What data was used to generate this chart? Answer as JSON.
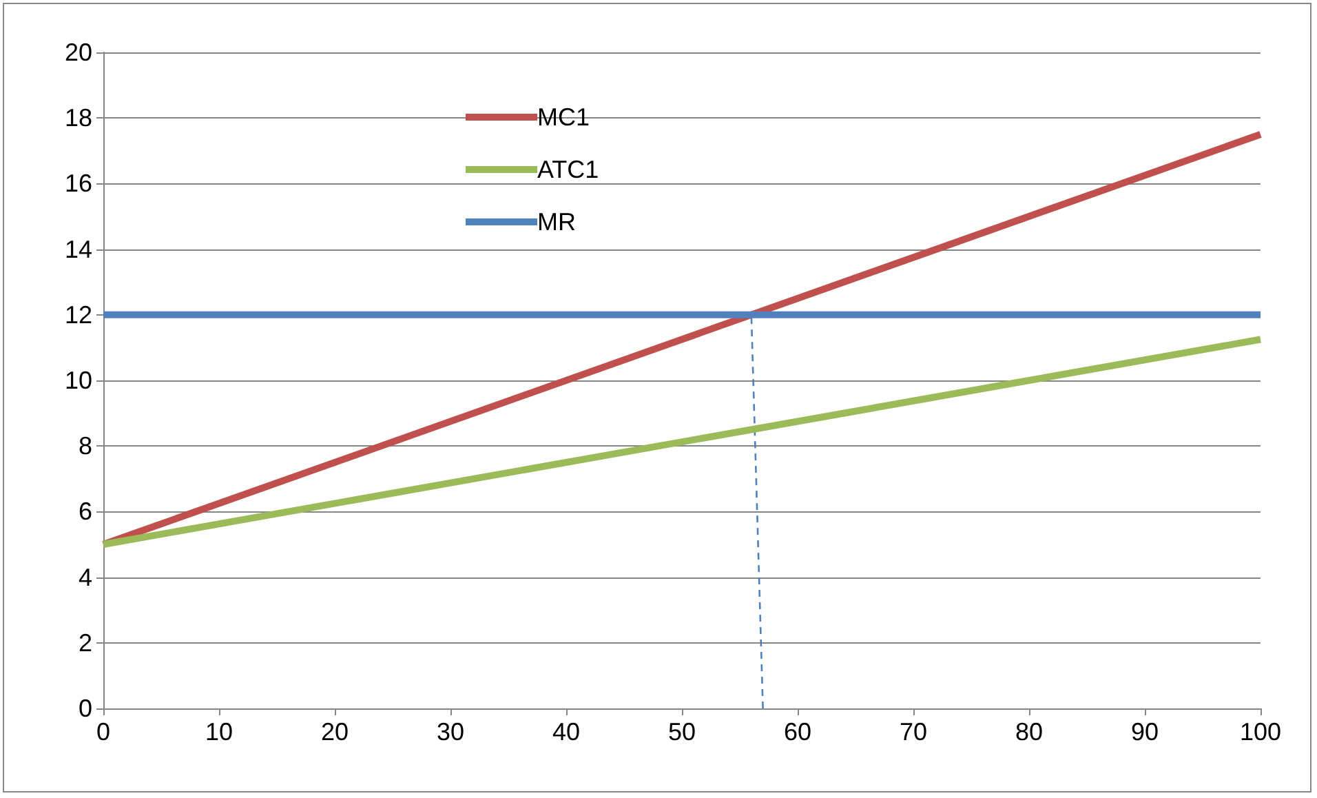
{
  "chart_data": {
    "type": "line",
    "xlim": [
      0,
      100
    ],
    "xticks": [
      0,
      10,
      20,
      30,
      40,
      50,
      60,
      70,
      80,
      90,
      100
    ],
    "ylim": [
      0,
      20
    ],
    "yticks": [
      0,
      2,
      4,
      6,
      8,
      10,
      12,
      14,
      16,
      18,
      20
    ],
    "grid": "y",
    "legend": "top",
    "marker": "none",
    "line_style": "solid",
    "series": [
      {
        "name": "MC1",
        "color": "#c0504d",
        "x": [
          0,
          100
        ],
        "values": [
          5,
          17.5
        ]
      },
      {
        "name": "ATC1",
        "color": "#9bbb59",
        "x": [
          0,
          100
        ],
        "values": [
          5,
          11.25
        ]
      },
      {
        "name": "MR",
        "color": "#4f81bd",
        "x": [
          0,
          100
        ],
        "values": [
          12,
          12
        ]
      },
      {
        "color": "#4f81bd",
        "x": [
          57,
          56
        ],
        "values": [
          0,
          12
        ],
        "line_style": "dashed"
      }
    ]
  }
}
